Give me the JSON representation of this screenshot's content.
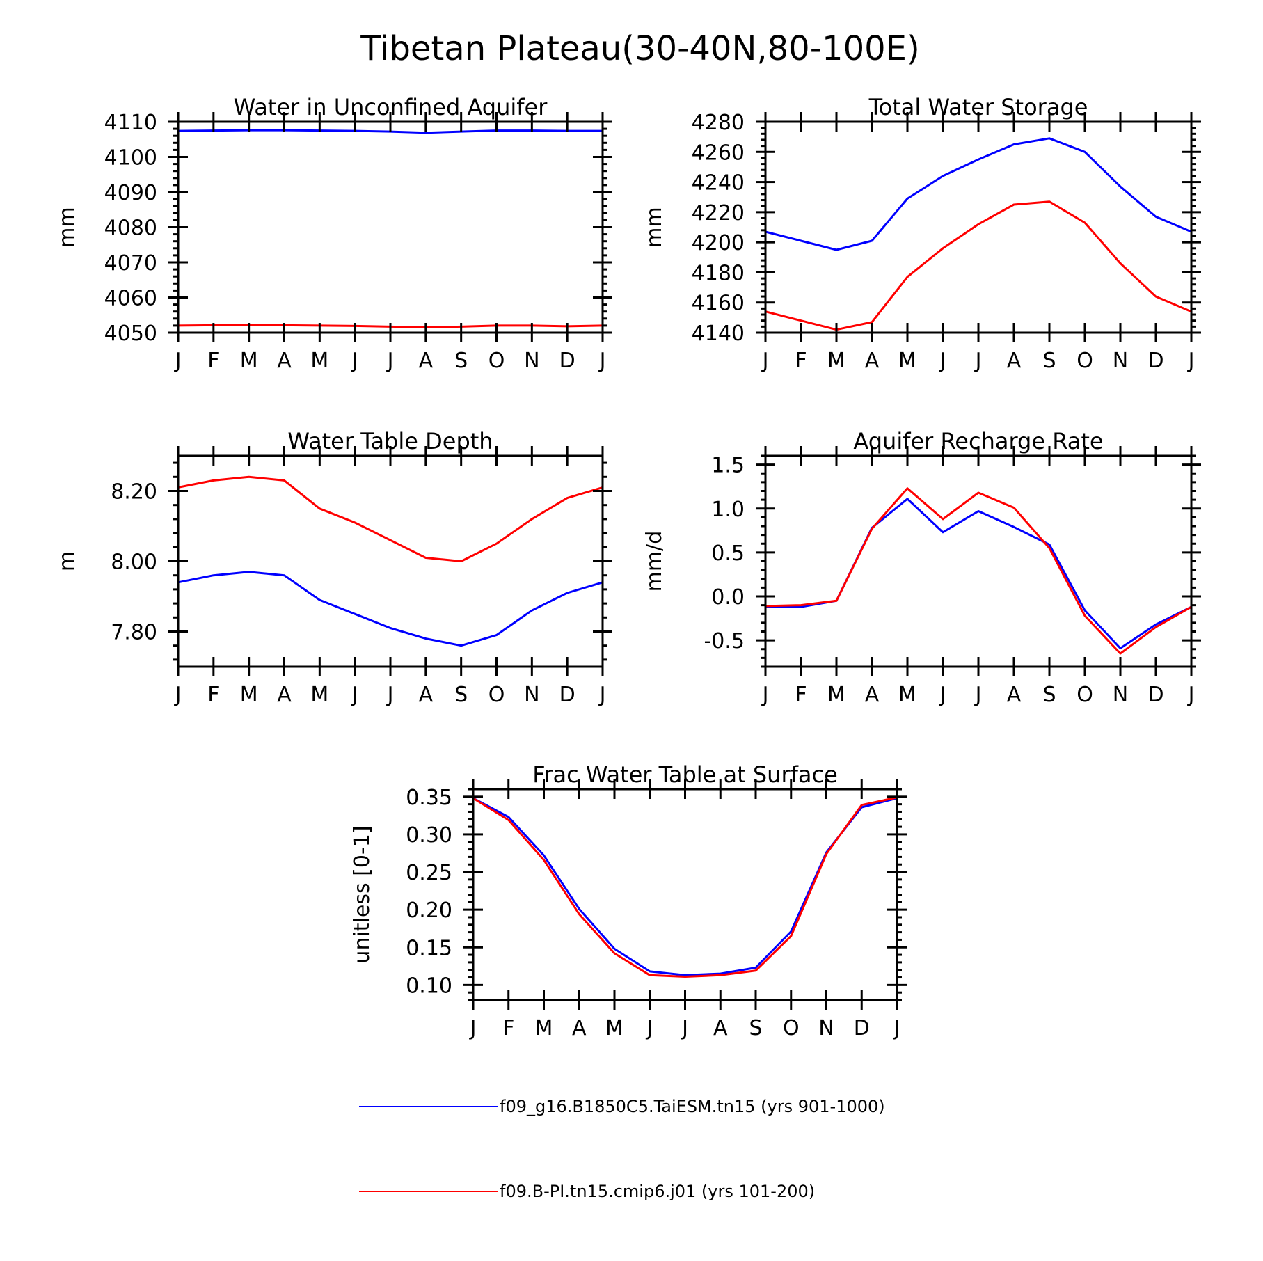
{
  "figure": {
    "title": "Tibetan Plateau(30-40N,80-100E)"
  },
  "chart_data": [
    {
      "type": "line",
      "title": "Water in Unconfined Aquifer",
      "xlabel": "",
      "ylabel": "mm",
      "x": [
        "J",
        "F",
        "M",
        "A",
        "M",
        "J",
        "J",
        "A",
        "S",
        "O",
        "N",
        "D",
        "J"
      ],
      "ylim": [
        4050,
        4110
      ],
      "yticks": [
        4050,
        4060,
        4070,
        4080,
        4090,
        4100,
        4110
      ],
      "ytick_labels": [
        "4050",
        "4060",
        "4070",
        "4080",
        "4090",
        "4100",
        "4110"
      ],
      "series": [
        {
          "name": "f09_g16.B1850C5.TaiESM.tn15 (yrs 901-1000)",
          "color": "#0000ff",
          "values": [
            4107.4,
            4107.5,
            4107.6,
            4107.6,
            4107.5,
            4107.4,
            4107.2,
            4106.9,
            4107.2,
            4107.5,
            4107.5,
            4107.4,
            4107.4
          ]
        },
        {
          "name": "f09.B-PI.tn15.cmip6.j01 (yrs 101-200)",
          "color": "#ff0000",
          "values": [
            4052.0,
            4052.1,
            4052.1,
            4052.1,
            4052.0,
            4051.9,
            4051.7,
            4051.5,
            4051.7,
            4052.0,
            4052.0,
            4051.8,
            4052.0
          ]
        }
      ]
    },
    {
      "type": "line",
      "title": "Total Water Storage",
      "xlabel": "",
      "ylabel": "mm",
      "x": [
        "J",
        "F",
        "M",
        "A",
        "M",
        "J",
        "J",
        "A",
        "S",
        "O",
        "N",
        "D",
        "J"
      ],
      "ylim": [
        4140,
        4280
      ],
      "yticks": [
        4140,
        4160,
        4180,
        4200,
        4220,
        4240,
        4260,
        4280
      ],
      "ytick_labels": [
        "4140",
        "4160",
        "4180",
        "4200",
        "4220",
        "4240",
        "4260",
        "4280"
      ],
      "series": [
        {
          "name": "f09_g16.B1850C5.TaiESM.tn15 (yrs 901-1000)",
          "color": "#0000ff",
          "values": [
            4207,
            4201,
            4195,
            4201,
            4229,
            4244,
            4255,
            4265,
            4269,
            4260,
            4237,
            4217,
            4207
          ]
        },
        {
          "name": "f09.B-PI.tn15.cmip6.j01 (yrs 101-200)",
          "color": "#ff0000",
          "values": [
            4154,
            4148,
            4142,
            4147,
            4177,
            4196,
            4212,
            4225,
            4227,
            4213,
            4186,
            4164,
            4154
          ]
        }
      ]
    },
    {
      "type": "line",
      "title": "Water Table Depth",
      "xlabel": "",
      "ylabel": "m",
      "x": [
        "J",
        "F",
        "M",
        "A",
        "M",
        "J",
        "J",
        "A",
        "S",
        "O",
        "N",
        "D",
        "J"
      ],
      "ylim": [
        7.7,
        8.3
      ],
      "yticks": [
        7.8,
        8.0,
        8.2
      ],
      "ytick_labels": [
        "7.80",
        "8.00",
        "8.20"
      ],
      "series": [
        {
          "name": "f09_g16.B1850C5.TaiESM.tn15 (yrs 901-1000)",
          "color": "#0000ff",
          "values": [
            7.94,
            7.96,
            7.97,
            7.96,
            7.89,
            7.85,
            7.81,
            7.78,
            7.76,
            7.79,
            7.86,
            7.91,
            7.94
          ]
        },
        {
          "name": "f09.B-PI.tn15.cmip6.j01 (yrs 101-200)",
          "color": "#ff0000",
          "values": [
            8.21,
            8.23,
            8.24,
            8.23,
            8.15,
            8.11,
            8.06,
            8.01,
            8.0,
            8.05,
            8.12,
            8.18,
            8.21
          ]
        }
      ]
    },
    {
      "type": "line",
      "title": "Aquifer Recharge Rate",
      "xlabel": "",
      "ylabel": "mm/d",
      "x": [
        "J",
        "F",
        "M",
        "A",
        "M",
        "J",
        "J",
        "A",
        "S",
        "O",
        "N",
        "D",
        "J"
      ],
      "ylim": [
        -0.8,
        1.6
      ],
      "yticks": [
        -0.5,
        0.0,
        0.5,
        1.0,
        1.5
      ],
      "ytick_labels": [
        "-0.5",
        "0.0",
        "0.5",
        "1.0",
        "1.5"
      ],
      "series": [
        {
          "name": "f09_g16.B1850C5.TaiESM.tn15 (yrs 901-1000)",
          "color": "#0000ff",
          "values": [
            -0.12,
            -0.12,
            -0.05,
            0.78,
            1.11,
            0.73,
            0.97,
            0.79,
            0.59,
            -0.16,
            -0.59,
            -0.32,
            -0.12
          ]
        },
        {
          "name": "f09.B-PI.tn15.cmip6.j01 (yrs 101-200)",
          "color": "#ff0000",
          "values": [
            -0.11,
            -0.1,
            -0.05,
            0.77,
            1.23,
            0.88,
            1.18,
            1.01,
            0.55,
            -0.22,
            -0.65,
            -0.35,
            -0.12
          ]
        }
      ]
    },
    {
      "type": "line",
      "title": "Frac Water Table at Surface",
      "xlabel": "",
      "ylabel": "unitless [0-1]",
      "x": [
        "J",
        "F",
        "M",
        "A",
        "M",
        "J",
        "J",
        "A",
        "S",
        "O",
        "N",
        "D",
        "J"
      ],
      "ylim": [
        0.08,
        0.36
      ],
      "yticks": [
        0.1,
        0.15,
        0.2,
        0.25,
        0.3,
        0.35
      ],
      "ytick_labels": [
        "0.10",
        "0.15",
        "0.20",
        "0.25",
        "0.30",
        "0.35"
      ],
      "series": [
        {
          "name": "f09_g16.B1850C5.TaiESM.tn15 (yrs 901-1000)",
          "color": "#0000ff",
          "values": [
            0.348,
            0.323,
            0.272,
            0.201,
            0.148,
            0.118,
            0.113,
            0.115,
            0.123,
            0.171,
            0.276,
            0.336,
            0.348
          ]
        },
        {
          "name": "f09.B-PI.tn15.cmip6.j01 (yrs 101-200)",
          "color": "#ff0000",
          "values": [
            0.348,
            0.319,
            0.266,
            0.194,
            0.142,
            0.113,
            0.111,
            0.113,
            0.119,
            0.165,
            0.274,
            0.339,
            0.349
          ]
        }
      ]
    }
  ],
  "legend": [
    {
      "label": "f09_g16.B1850C5.TaiESM.tn15 (yrs 901-1000)",
      "color": "#0000ff"
    },
    {
      "label": "f09.B-PI.tn15.cmip6.j01 (yrs 101-200)",
      "color": "#ff0000"
    }
  ]
}
